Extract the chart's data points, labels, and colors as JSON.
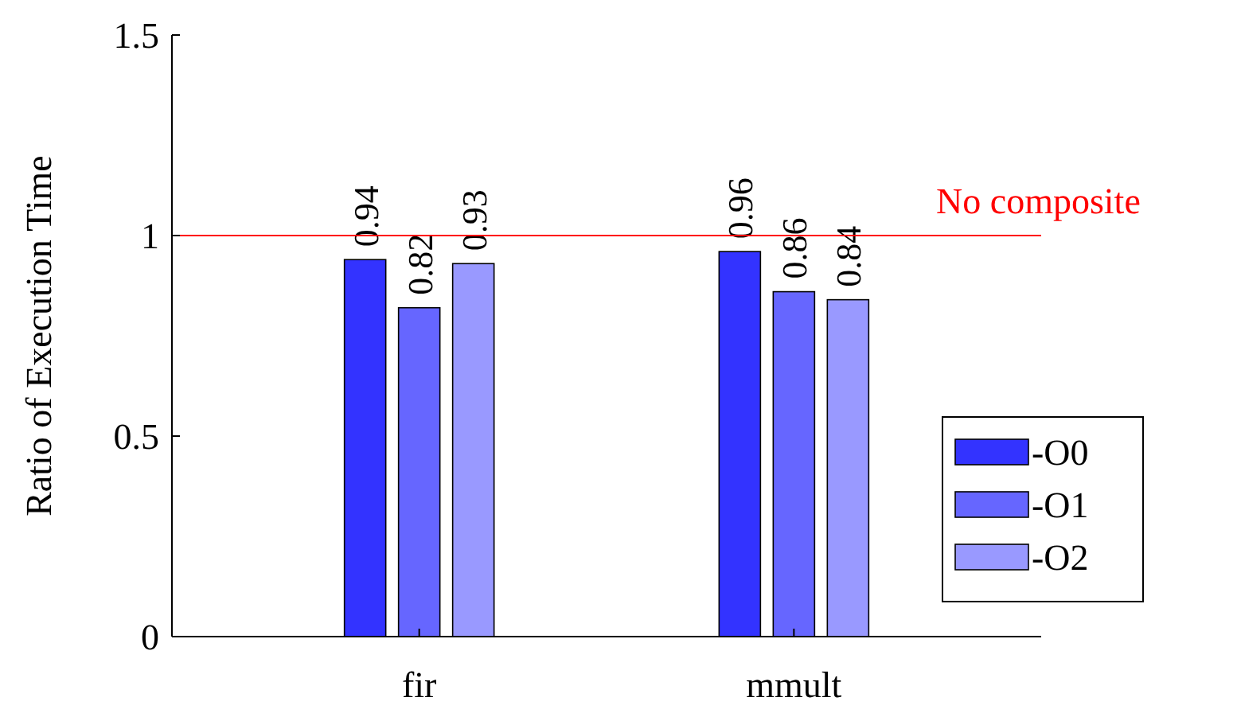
{
  "chart_data": {
    "type": "bar",
    "ylabel": "Ratio of Execution Time",
    "categories": [
      "fir",
      "mmult"
    ],
    "series": [
      {
        "name": "-O0",
        "color": "#3333ff",
        "values": [
          0.94,
          0.96
        ]
      },
      {
        "name": "-O1",
        "color": "#6666ff",
        "values": [
          0.82,
          0.86
        ]
      },
      {
        "name": "-O2",
        "color": "#9999ff",
        "values": [
          0.93,
          0.84
        ]
      }
    ],
    "ylim": [
      0,
      1.5
    ],
    "yticks": [
      0,
      0.5,
      1,
      1.5
    ],
    "data_labels": true,
    "legend": "bottom right",
    "grid": false,
    "ref_lines": [
      {
        "axis": "y",
        "value": 1,
        "label": "No composite",
        "color": "#ff0000"
      }
    ]
  }
}
